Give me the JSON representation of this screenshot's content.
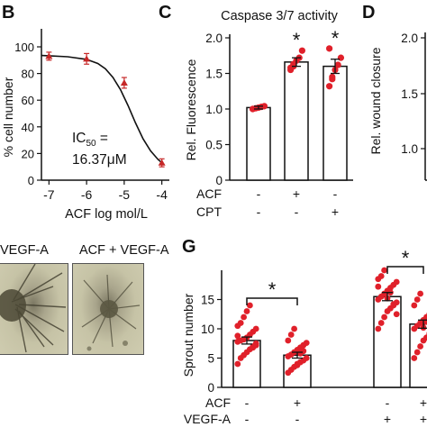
{
  "panel_letters": {
    "b": "B",
    "c": "C",
    "d": "D",
    "g": "G"
  },
  "image_labels": {
    "left": "VEGF-A",
    "right": "ACF + VEGF-A"
  },
  "colors": {
    "accent": "#e0202a",
    "dose_curve": "#111111",
    "marker": "#c62828"
  },
  "chart_data": [
    {
      "id": "panel-b",
      "type": "line",
      "title": "",
      "xlabel": "ACF log mol/L",
      "ylabel": "% cell number",
      "xlim": [
        -7.2,
        -3.8
      ],
      "ylim": [
        0,
        100
      ],
      "xticks": [
        -7,
        -6,
        -5,
        -4
      ],
      "yticks": [
        0,
        20,
        40,
        60,
        80,
        100
      ],
      "x": [
        -7,
        -6,
        -5,
        -4
      ],
      "y": [
        93,
        91,
        73,
        13
      ],
      "err": [
        3,
        4,
        4,
        3
      ],
      "curve": [
        [
          -7.2,
          93.5
        ],
        [
          -7,
          93.3
        ],
        [
          -6.5,
          92.6
        ],
        [
          -6,
          90.6
        ],
        [
          -5.7,
          87.5
        ],
        [
          -5.5,
          83.5
        ],
        [
          -5.3,
          77
        ],
        [
          -5.1,
          68
        ],
        [
          -4.9,
          56
        ],
        [
          -4.7,
          43
        ],
        [
          -4.5,
          31
        ],
        [
          -4.3,
          22
        ],
        [
          -4.1,
          15.5
        ],
        [
          -3.95,
          12
        ]
      ],
      "annotation_line1": "IC",
      "annotation_sub": "50",
      "annotation_eq": " =",
      "annotation_line2": "16.37μM"
    },
    {
      "id": "panel-c",
      "type": "bar",
      "title": "Caspase 3/7 activity",
      "ylabel": "Rel. Fluorescence",
      "ylim": [
        0,
        2.0
      ],
      "yticks": [
        0,
        0.5,
        1.0,
        1.5,
        2.0
      ],
      "ytick_labels": [
        "0",
        "0.5",
        "1.0",
        "1.5",
        "2.0"
      ],
      "values": [
        1.02,
        1.66,
        1.6
      ],
      "err": [
        0.02,
        0.06,
        0.1
      ],
      "points": [
        [
          1.0,
          1.01,
          1.02,
          1.03,
          1.04,
          1.0
        ],
        [
          1.55,
          1.6,
          1.68,
          1.72,
          1.82,
          1.58,
          1.63
        ],
        [
          1.32,
          1.42,
          1.55,
          1.62,
          1.72,
          1.85,
          1.45
        ]
      ],
      "significance": [
        "",
        "*",
        "*"
      ],
      "row_labels": [
        "ACF",
        "CPT"
      ],
      "row_marks": [
        [
          "-",
          "+",
          "-"
        ],
        [
          "-",
          "-",
          "+"
        ]
      ]
    },
    {
      "id": "panel-d",
      "type": "bar",
      "ylabel": "Rel. wound closure",
      "ytick_labels": [
        "1.0",
        "1.5",
        "2.0"
      ]
    },
    {
      "id": "panel-g",
      "type": "bar",
      "ylabel": "Sprout number",
      "ylim": [
        0,
        20
      ],
      "yticks": [
        0,
        5,
        10,
        15
      ],
      "ytick_labels": [
        "0",
        "5",
        "10",
        "15"
      ],
      "values": [
        8,
        5.5,
        15.5,
        10.8
      ],
      "err": [
        0.6,
        0.5,
        0.7,
        0.7
      ],
      "points": [
        [
          4,
          5,
          5.5,
          6,
          6.5,
          7,
          7.5,
          7.8,
          8,
          8.2,
          8.5,
          9,
          9.5,
          10,
          10.5,
          11,
          12,
          13,
          14,
          6.8,
          7.2,
          8.8
        ],
        [
          2.5,
          3,
          3.5,
          4,
          4.3,
          4.6,
          5,
          5.3,
          5.6,
          6,
          6.4,
          6.8,
          7.2,
          7.6,
          8,
          9,
          10,
          3.8,
          5.8,
          6.2
        ],
        [
          10,
          11,
          12,
          13,
          13.5,
          14,
          14.5,
          15,
          15.5,
          16,
          16.5,
          17,
          17.5,
          18,
          18.5,
          19,
          20,
          15.2,
          16.2,
          14.2,
          12.5,
          17.2
        ],
        [
          5,
          6,
          7,
          8,
          8.5,
          9,
          9.5,
          10,
          10.5,
          11,
          11.5,
          12,
          12.5,
          13,
          14,
          15,
          16,
          10.2,
          11.2,
          9.2
        ]
      ],
      "brackets": [
        {
          "from": 0,
          "to": 1,
          "label": "*"
        },
        {
          "from": 2,
          "to": 3,
          "label": "*"
        }
      ],
      "row_labels": [
        "ACF",
        "VEGF-A"
      ],
      "row_marks": [
        [
          "-",
          "+",
          "-",
          "+"
        ],
        [
          "-",
          "-",
          "+",
          "+"
        ]
      ]
    }
  ]
}
